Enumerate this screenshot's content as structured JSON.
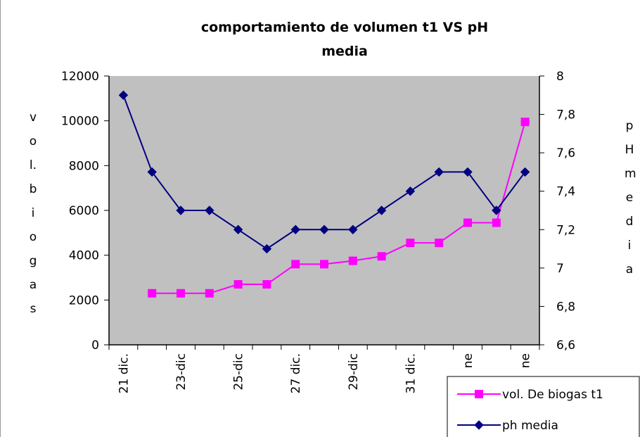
{
  "chart_data": {
    "type": "line",
    "title": "comportamiento de volumen t1 VS pH media",
    "y_label": "vol. biogas",
    "y2_label": "pH media",
    "categories": [
      "21 dic.",
      null,
      "23-dic",
      null,
      "25-dic",
      null,
      "27 dic.",
      null,
      "29-dic",
      null,
      "31 dic.",
      null,
      "ne",
      null,
      "ne"
    ],
    "series": [
      {
        "name": "vol. De biogas t1",
        "color": "#ff00ff",
        "marker": "square",
        "values": [
          null,
          2300,
          2300,
          2300,
          2700,
          2700,
          3600,
          3600,
          3750,
          3950,
          4550,
          4550,
          5450,
          5450,
          9950
        ]
      },
      {
        "name": "ph media",
        "color": "#000080",
        "marker": "diamond",
        "axis": "y2",
        "values": [
          7.9,
          7.5,
          7.3,
          7.3,
          7.2,
          7.1,
          7.2,
          7.2,
          7.2,
          7.3,
          7.4,
          7.5,
          7.5,
          7.3,
          7.5
        ]
      }
    ],
    "ylim": [
      0,
      12000
    ],
    "yticks": [
      0,
      2000,
      4000,
      6000,
      8000,
      10000,
      12000
    ],
    "y2lim": [
      6.6,
      8
    ],
    "y2ticks": [
      {
        "value": 6.6,
        "label": "6,6"
      },
      {
        "value": 6.8,
        "label": "6,8"
      },
      7,
      {
        "value": 7.2,
        "label": "7,2"
      },
      {
        "value": 7.4,
        "label": "7,4"
      },
      {
        "value": 7.6,
        "label": "7,6"
      },
      {
        "value": 7.8,
        "label": "7,8"
      },
      8
    ],
    "plot_background": "#c0c0c0",
    "grid": false
  }
}
